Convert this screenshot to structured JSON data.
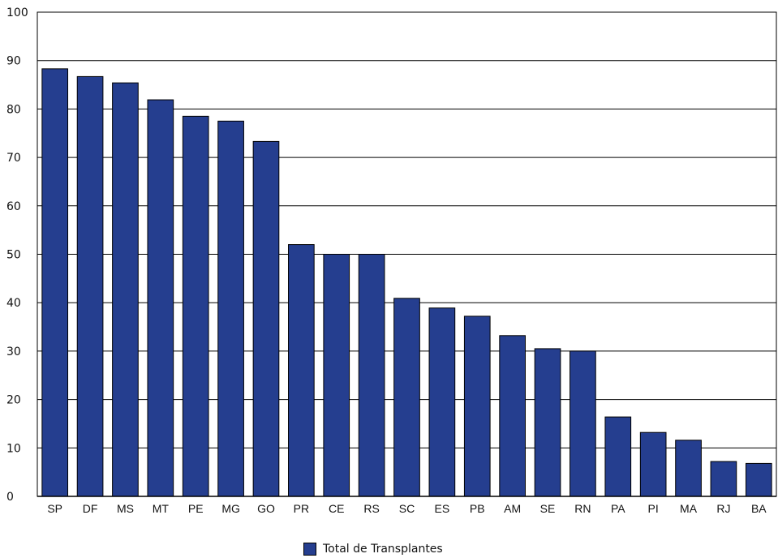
{
  "chart_data": {
    "type": "bar",
    "categories": [
      "SP",
      "DF",
      "MS",
      "MT",
      "PE",
      "MG",
      "GO",
      "PR",
      "CE",
      "RS",
      "SC",
      "ES",
      "PB",
      "AM",
      "SE",
      "RN",
      "PA",
      "PI",
      "MA",
      "RJ",
      "BA"
    ],
    "series": [
      {
        "name": "Total de Transplantes",
        "values": [
          88.3,
          86.7,
          85.4,
          81.9,
          78.5,
          77.5,
          73.3,
          52.0,
          50.0,
          50.0,
          40.9,
          38.9,
          37.2,
          33.2,
          30.5,
          30.0,
          16.4,
          13.2,
          11.6,
          7.2,
          6.8
        ]
      }
    ],
    "title": "",
    "xlabel": "",
    "ylabel": "",
    "ylim": [
      0,
      100
    ],
    "yticks": [
      0,
      10,
      20,
      30,
      40,
      50,
      60,
      70,
      80,
      90,
      100
    ],
    "grid": true,
    "legend_position": "bottom-center",
    "colors": {
      "bar": "#253e8f",
      "grid": "#000000"
    }
  }
}
